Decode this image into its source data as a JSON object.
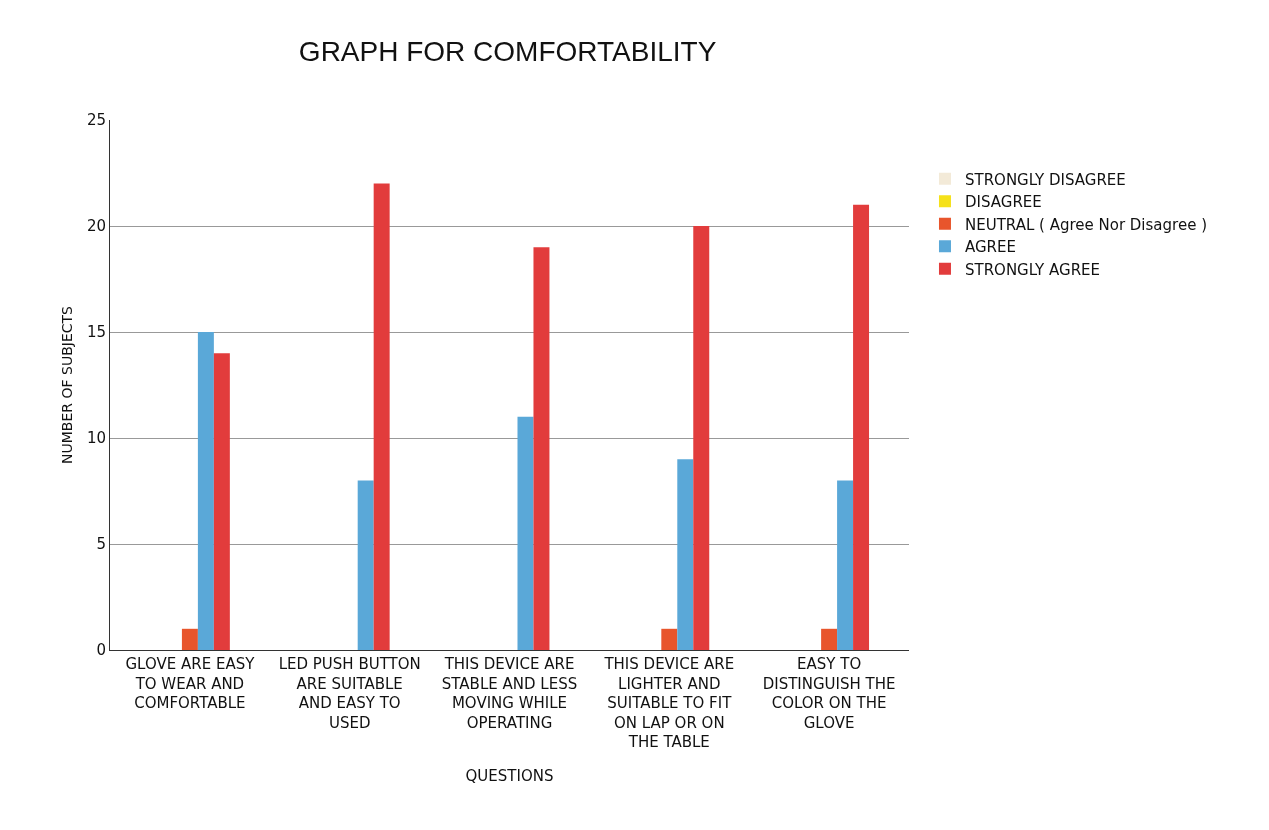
{
  "chart_data": {
    "type": "bar",
    "title": "GRAPH FOR COMFORTABILITY",
    "xlabel": "QUESTIONS",
    "ylabel": "NUMBER OF SUBJECTS",
    "categories": [
      "GLOVE ARE EASY TO WEAR AND COMFORTABLE",
      "LED PUSH BUTTON ARE SUITABLE AND EASY TO USED",
      "THIS DEVICE ARE STABLE AND LESS MOVING WHILE OPERATING",
      "THIS DEVICE ARE LIGHTER AND SUITABLE TO FIT ON LAP OR ON THE TABLE",
      "EASY TO DISTINGUISH THE COLOR ON THE GLOVE"
    ],
    "series": [
      {
        "name": "STRONGLY DISAGREE",
        "color": "#f3ead8",
        "values": [
          0,
          0,
          0,
          0,
          0
        ]
      },
      {
        "name": "DISAGREE",
        "color": "#f5e11a",
        "values": [
          0,
          0,
          0,
          0,
          0
        ]
      },
      {
        "name": "NEUTRAL ( Agree Nor Disagree )",
        "color": "#e8552c",
        "values": [
          1,
          0,
          0,
          1,
          1
        ]
      },
      {
        "name": "AGREE",
        "color": "#5aa8d8",
        "values": [
          15,
          8,
          11,
          9,
          8
        ]
      },
      {
        "name": "STRONGLY AGREE",
        "color": "#e23c3c",
        "values": [
          14,
          22,
          19,
          20,
          21
        ]
      }
    ],
    "ylim": [
      0,
      25
    ],
    "yticks": [
      0,
      5,
      10,
      15,
      20,
      25
    ],
    "grid": "y",
    "legend": "right"
  }
}
